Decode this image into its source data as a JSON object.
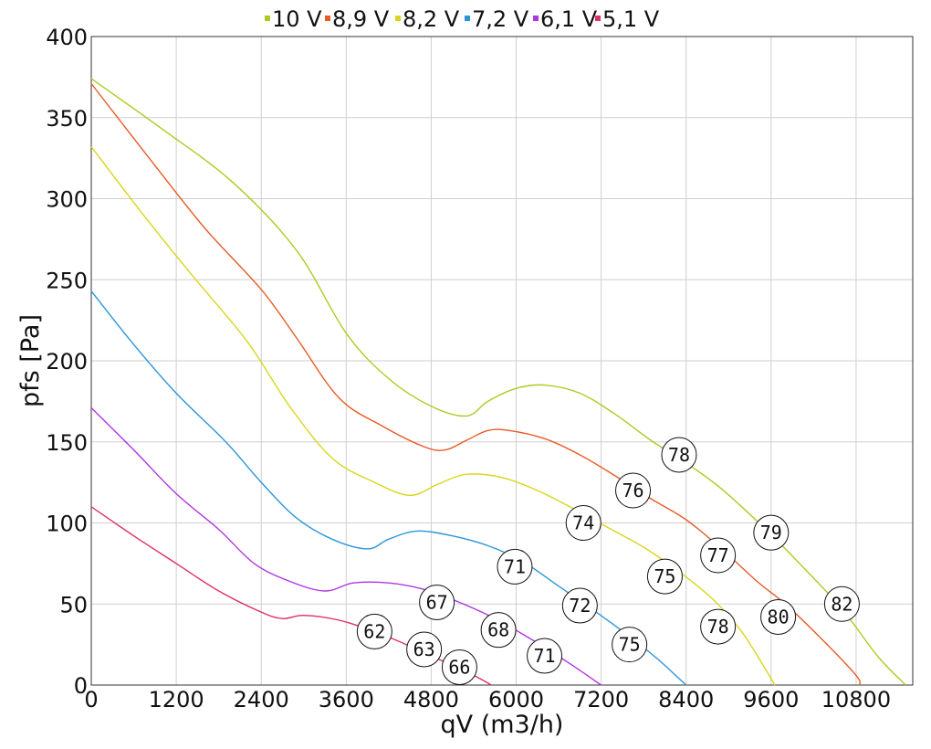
{
  "chart_data": {
    "type": "line",
    "title": "",
    "xlabel": "qV (m3/h)",
    "ylabel": "pfs [Pa]",
    "xlim": [
      0,
      11600
    ],
    "ylim": [
      0,
      400
    ],
    "x_ticks": [
      0,
      1200,
      2400,
      3600,
      4800,
      6000,
      7200,
      8400,
      9600,
      10800
    ],
    "y_ticks": [
      0,
      50,
      100,
      150,
      200,
      250,
      300,
      350,
      400
    ],
    "grid": true,
    "legend_position": "top",
    "series": [
      {
        "name": "10 V",
        "color": "#aacc22",
        "points": [
          [
            0,
            374
          ],
          [
            1000,
            343
          ],
          [
            2000,
            310
          ],
          [
            2900,
            268
          ],
          [
            3600,
            217
          ],
          [
            4200,
            189
          ],
          [
            4800,
            172
          ],
          [
            5300,
            166
          ],
          [
            5600,
            175
          ],
          [
            6000,
            183
          ],
          [
            6400,
            185
          ],
          [
            6900,
            180
          ],
          [
            7400,
            167
          ],
          [
            7900,
            151
          ],
          [
            8400,
            137
          ],
          [
            8900,
            121
          ],
          [
            9500,
            97
          ],
          [
            10000,
            75
          ],
          [
            10600,
            47
          ],
          [
            11100,
            18
          ],
          [
            11500,
            0
          ]
        ]
      },
      {
        "name": "8,9 V",
        "color": "#e85a25",
        "points": [
          [
            0,
            371
          ],
          [
            800,
            326
          ],
          [
            1600,
            282
          ],
          [
            2400,
            244
          ],
          [
            2900,
            214
          ],
          [
            3500,
            177
          ],
          [
            4100,
            160
          ],
          [
            4700,
            147
          ],
          [
            5000,
            145
          ],
          [
            5300,
            151
          ],
          [
            5600,
            157
          ],
          [
            5900,
            157
          ],
          [
            6400,
            152
          ],
          [
            6900,
            142
          ],
          [
            7400,
            129
          ],
          [
            7900,
            115
          ],
          [
            8400,
            102
          ],
          [
            8900,
            84
          ],
          [
            9400,
            64
          ],
          [
            9800,
            50
          ],
          [
            10300,
            29
          ],
          [
            10800,
            6
          ],
          [
            10850,
            0
          ]
        ]
      },
      {
        "name": "8,2 V",
        "color": "#d8d61c",
        "points": [
          [
            0,
            332
          ],
          [
            700,
            292
          ],
          [
            1400,
            254
          ],
          [
            2200,
            212
          ],
          [
            2800,
            172
          ],
          [
            3400,
            140
          ],
          [
            4000,
            125
          ],
          [
            4500,
            117
          ],
          [
            4900,
            124
          ],
          [
            5300,
            130
          ],
          [
            5800,
            128
          ],
          [
            6300,
            120
          ],
          [
            6800,
            109
          ],
          [
            7300,
            97
          ],
          [
            7800,
            85
          ],
          [
            8300,
            70
          ],
          [
            8800,
            52
          ],
          [
            9200,
            32
          ],
          [
            9600,
            4
          ],
          [
            9650,
            0
          ]
        ]
      },
      {
        "name": "7,2 V",
        "color": "#2a96d8",
        "points": [
          [
            0,
            243
          ],
          [
            600,
            210
          ],
          [
            1200,
            180
          ],
          [
            1900,
            150
          ],
          [
            2400,
            125
          ],
          [
            2900,
            103
          ],
          [
            3400,
            90
          ],
          [
            3900,
            84
          ],
          [
            4200,
            90
          ],
          [
            4600,
            95
          ],
          [
            5100,
            92
          ],
          [
            5600,
            86
          ],
          [
            6100,
            76
          ],
          [
            6600,
            61
          ],
          [
            7100,
            46
          ],
          [
            7600,
            30
          ],
          [
            8000,
            16
          ],
          [
            8300,
            4
          ],
          [
            8400,
            0
          ]
        ]
      },
      {
        "name": "6,1 V",
        "color": "#b035e0",
        "points": [
          [
            0,
            171
          ],
          [
            600,
            145
          ],
          [
            1200,
            118
          ],
          [
            1800,
            96
          ],
          [
            2300,
            75
          ],
          [
            2800,
            64
          ],
          [
            3300,
            58
          ],
          [
            3700,
            63
          ],
          [
            4200,
            63
          ],
          [
            4700,
            59
          ],
          [
            5200,
            51
          ],
          [
            5700,
            41
          ],
          [
            6300,
            26
          ],
          [
            6800,
            12
          ],
          [
            7100,
            3
          ],
          [
            7200,
            0
          ]
        ]
      },
      {
        "name": "5,1 V",
        "color": "#e0305f",
        "points": [
          [
            0,
            110
          ],
          [
            600,
            92
          ],
          [
            1200,
            75
          ],
          [
            1800,
            58
          ],
          [
            2400,
            45
          ],
          [
            2700,
            41
          ],
          [
            3000,
            43
          ],
          [
            3500,
            40
          ],
          [
            4000,
            33
          ],
          [
            4500,
            24
          ],
          [
            5000,
            14
          ],
          [
            5400,
            6
          ],
          [
            5650,
            0
          ]
        ]
      }
    ],
    "annotations": [
      {
        "text": "78",
        "x": 8300,
        "y": 142
      },
      {
        "text": "76",
        "x": 7650,
        "y": 120
      },
      {
        "text": "74",
        "x": 6950,
        "y": 100
      },
      {
        "text": "71",
        "x": 5980,
        "y": 73
      },
      {
        "text": "67",
        "x": 4880,
        "y": 51
      },
      {
        "text": "62",
        "x": 4000,
        "y": 33
      },
      {
        "text": "79",
        "x": 9600,
        "y": 94
      },
      {
        "text": "77",
        "x": 8850,
        "y": 80
      },
      {
        "text": "75",
        "x": 8100,
        "y": 67
      },
      {
        "text": "72",
        "x": 6900,
        "y": 49
      },
      {
        "text": "68",
        "x": 5750,
        "y": 34
      },
      {
        "text": "63",
        "x": 4700,
        "y": 22
      },
      {
        "text": "82",
        "x": 10600,
        "y": 50
      },
      {
        "text": "80",
        "x": 9700,
        "y": 42
      },
      {
        "text": "78",
        "x": 8850,
        "y": 36
      },
      {
        "text": "75",
        "x": 7600,
        "y": 25
      },
      {
        "text": "71",
        "x": 6400,
        "y": 18
      },
      {
        "text": "66",
        "x": 5200,
        "y": 11
      }
    ]
  }
}
